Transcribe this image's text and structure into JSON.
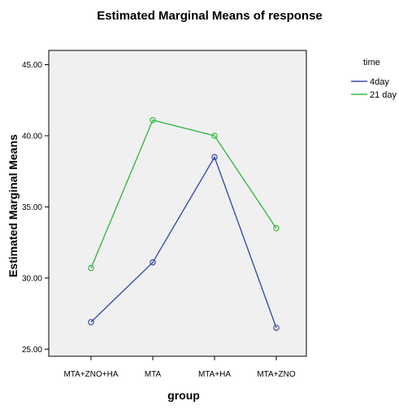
{
  "chart_data": {
    "type": "line",
    "title": "Estimated Marginal Means of response",
    "xlabel": "group",
    "ylabel": "Estimated Marginal Means",
    "categories": [
      "MTA+ZNO+HA",
      "MTA",
      "MTA+HA",
      "MTA+ZNO"
    ],
    "ylim": [
      24.5,
      46.0
    ],
    "yticks": [
      "25.00",
      "30.00",
      "35.00",
      "40.00",
      "45.00"
    ],
    "legend_title": "time",
    "legend_position": "right",
    "grid": false,
    "series": [
      {
        "name": "4day",
        "color": "#3b4ea3",
        "values": [
          26.9,
          31.1,
          38.5,
          26.5
        ]
      },
      {
        "name": "21 day",
        "color": "#3cb84a",
        "values": [
          30.7,
          41.1,
          40.0,
          33.5
        ]
      }
    ],
    "colors": {
      "plot_background": "#f0f0f0",
      "page_background": "#ffffff"
    }
  }
}
